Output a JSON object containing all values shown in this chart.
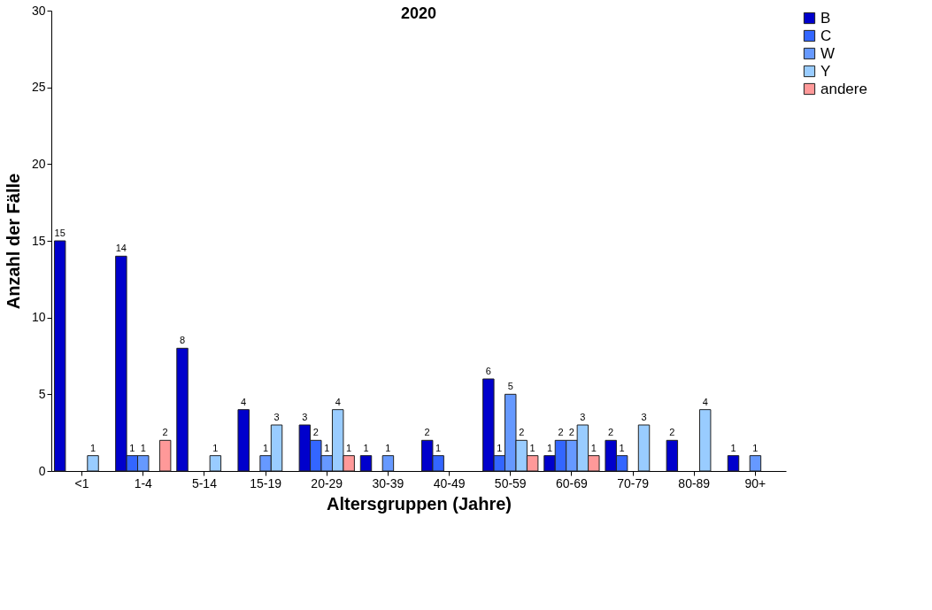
{
  "chart_data": {
    "type": "bar",
    "title": "2020",
    "xlabel": "Altersgruppen (Jahre)",
    "ylabel": "Anzahl der Fälle",
    "categories": [
      "<1",
      "1-4",
      "5-14",
      "15-19",
      "20-29",
      "30-39",
      "40-49",
      "50-59",
      "60-69",
      "70-79",
      "80-89",
      "90+"
    ],
    "series": [
      {
        "name": "B",
        "color": "#0000cc",
        "values": [
          15,
          14,
          8,
          4,
          3,
          1,
          2,
          6,
          1,
          2,
          2,
          1
        ]
      },
      {
        "name": "C",
        "color": "#3366ff",
        "values": [
          null,
          1,
          null,
          null,
          2,
          null,
          1,
          1,
          2,
          1,
          null,
          null
        ]
      },
      {
        "name": "W",
        "color": "#6699ff",
        "values": [
          null,
          1,
          null,
          1,
          1,
          1,
          null,
          5,
          2,
          null,
          null,
          1
        ]
      },
      {
        "name": "Y",
        "color": "#99ccff",
        "values": [
          1,
          null,
          1,
          3,
          4,
          null,
          null,
          2,
          3,
          3,
          4,
          null
        ]
      },
      {
        "name": "andere",
        "color": "#ff9999",
        "values": [
          null,
          2,
          null,
          null,
          1,
          null,
          null,
          1,
          1,
          null,
          null,
          null
        ]
      }
    ],
    "ylim": [
      0,
      30
    ],
    "yticks": [
      0,
      5,
      10,
      15,
      20,
      25,
      30
    ],
    "grid": false,
    "legend": "right",
    "data_labels": true
  }
}
